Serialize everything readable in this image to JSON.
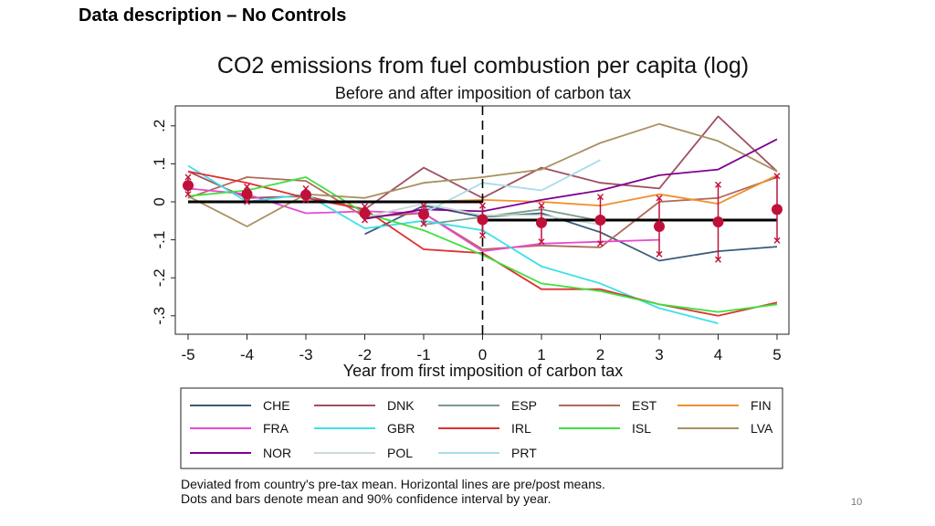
{
  "slide": {
    "title": "Data description – No Controls",
    "page_number": "10",
    "note_line1": "Deviated from country's pre-tax mean. Horizontal lines are pre/post means.",
    "note_line2": "Dots and bars denote mean and 90% confidence interval by year."
  },
  "chart_data": {
    "type": "line",
    "title": "CO2 emissions from fuel combustion per capita (log)",
    "subtitle": "Before and after imposition of carbon tax",
    "xlabel": "Year from first imposition of carbon tax",
    "ylabel": "",
    "x": [
      -5,
      -4,
      -3,
      -2,
      -1,
      0,
      1,
      2,
      3,
      4,
      5
    ],
    "x_tick_labels": [
      "-5",
      "-4",
      "-3",
      "-2",
      "-1",
      "0",
      "1",
      "2",
      "3",
      "4",
      "5"
    ],
    "y_ticks": [
      -0.3,
      -0.2,
      -0.1,
      0,
      0.1,
      0.2
    ],
    "y_tick_labels": [
      "-.3",
      "-.2",
      "-.1",
      "0",
      ".1",
      ".2"
    ],
    "xlim": [
      -5.2,
      5.2
    ],
    "ylim": [
      -0.33,
      0.255
    ],
    "vline_x": 0,
    "pre_mean": 0.0,
    "post_mean": -0.048,
    "legend_placement": "bottom",
    "series": [
      {
        "name": "CHE",
        "color": "#3b5b7a",
        "x": [
          -2,
          -1,
          0,
          1,
          2,
          3,
          4,
          5
        ],
        "values": [
          -0.085,
          -0.01,
          -0.04,
          -0.03,
          -0.08,
          -0.155,
          -0.13,
          -0.118
        ]
      },
      {
        "name": "DNK",
        "color": "#a05060",
        "x": [
          -5,
          -4,
          -3,
          -2,
          -1,
          0,
          1,
          2,
          3,
          4,
          5
        ],
        "values": [
          0.08,
          0.01,
          0.015,
          -0.02,
          0.09,
          0.01,
          0.09,
          0.05,
          0.035,
          0.225,
          0.08
        ]
      },
      {
        "name": "ESP",
        "color": "#7a9a8a",
        "x": [
          -1,
          0,
          1,
          2
        ],
        "values": [
          -0.06,
          -0.04,
          -0.02,
          -0.05
        ]
      },
      {
        "name": "EST",
        "color": "#b06a5a",
        "x": [
          -5,
          -4,
          -3,
          -2,
          -1,
          0,
          1,
          2,
          3,
          4,
          5
        ],
        "values": [
          0.01,
          0.065,
          0.055,
          -0.04,
          -0.03,
          -0.125,
          -0.115,
          -0.12,
          0.0,
          0.01,
          0.065
        ]
      },
      {
        "name": "FIN",
        "color": "#f0902a",
        "x": [
          -1,
          0,
          1,
          2,
          3,
          4,
          5
        ],
        "values": [
          0.0,
          0.005,
          0.0,
          -0.01,
          0.02,
          -0.005,
          0.07
        ]
      },
      {
        "name": "FRA",
        "color": "#e64ad0",
        "x": [
          -5,
          -4,
          -3,
          -2,
          -1,
          0,
          1,
          2,
          3
        ],
        "values": [
          0.035,
          0.02,
          -0.03,
          -0.025,
          -0.03,
          -0.13,
          -0.11,
          -0.105,
          -0.1
        ]
      },
      {
        "name": "GBR",
        "color": "#3ee0e8",
        "x": [
          -5,
          -4,
          -3,
          -2,
          -1,
          0,
          1,
          2,
          3,
          4
        ],
        "values": [
          0.095,
          0.0,
          0.02,
          -0.07,
          -0.05,
          -0.075,
          -0.17,
          -0.215,
          -0.28,
          -0.32
        ]
      },
      {
        "name": "IRL",
        "color": "#e03030",
        "x": [
          -5,
          -4,
          -3,
          -2,
          -1,
          0,
          1,
          2,
          3,
          4,
          5
        ],
        "values": [
          0.08,
          0.05,
          0.01,
          -0.02,
          -0.125,
          -0.135,
          -0.23,
          -0.23,
          -0.27,
          -0.3,
          -0.265
        ]
      },
      {
        "name": "ISL",
        "color": "#40e040",
        "x": [
          -5,
          -4,
          -3,
          -2,
          -1,
          0,
          1,
          2,
          3,
          4,
          5
        ],
        "values": [
          0.015,
          0.03,
          0.065,
          -0.03,
          -0.075,
          -0.14,
          -0.215,
          -0.235,
          -0.27,
          -0.29,
          -0.27
        ]
      },
      {
        "name": "LVA",
        "color": "#a89060",
        "x": [
          -5,
          -4,
          -3,
          -2,
          -1,
          0,
          1,
          2,
          3,
          4,
          5
        ],
        "values": [
          0.015,
          -0.065,
          0.02,
          0.01,
          0.05,
          0.065,
          0.085,
          0.155,
          0.205,
          0.16,
          0.08
        ]
      },
      {
        "name": "NOR",
        "color": "#800090",
        "x": [
          -2,
          -1,
          0,
          1,
          2,
          3,
          4,
          5
        ],
        "values": [
          -0.045,
          -0.02,
          -0.025,
          0.005,
          0.03,
          0.07,
          0.085,
          0.165
        ]
      },
      {
        "name": "POL",
        "color": "#c8dcd4",
        "x": [
          -2,
          -1,
          0,
          1,
          2
        ],
        "values": [
          -0.04,
          -0.005,
          -0.035,
          -0.035,
          -0.06
        ]
      },
      {
        "name": "PRT",
        "color": "#a8dce8",
        "x": [
          -1,
          0,
          1,
          2
        ],
        "values": [
          -0.03,
          0.05,
          0.03,
          0.11
        ]
      }
    ],
    "means": {
      "x": [
        -5,
        -4,
        -3,
        -2,
        -1,
        0,
        1,
        2,
        3,
        4,
        5
      ],
      "values": [
        0.043,
        0.02,
        0.018,
        -0.03,
        -0.033,
        -0.047,
        -0.055,
        -0.048,
        -0.065,
        -0.053,
        -0.02
      ],
      "ci_low": [
        0.02,
        0.0,
        0.005,
        -0.048,
        -0.058,
        -0.088,
        -0.105,
        -0.11,
        -0.138,
        -0.152,
        -0.102
      ],
      "ci_high": [
        0.065,
        0.04,
        0.035,
        -0.012,
        -0.01,
        -0.01,
        -0.01,
        0.013,
        0.01,
        0.045,
        0.068
      ],
      "color": "#c0103a"
    }
  }
}
